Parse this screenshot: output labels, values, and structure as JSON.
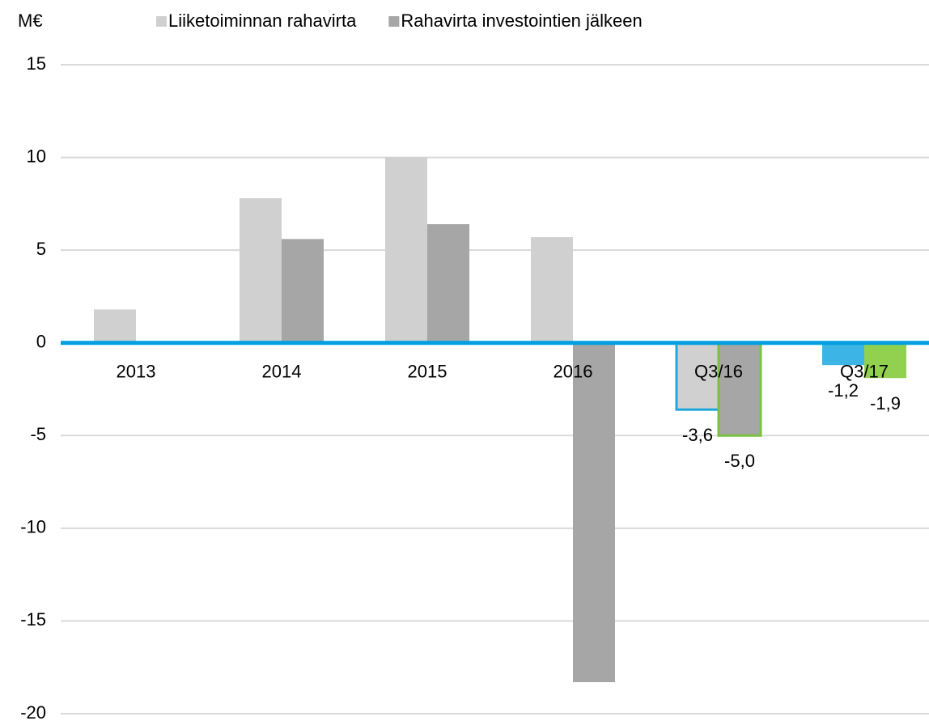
{
  "chart_data": {
    "type": "bar",
    "y_axis_label": "M€",
    "categories": [
      "2013",
      "2014",
      "2015",
      "2016",
      "Q3/16",
      "Q3/17"
    ],
    "series": [
      {
        "name": "Liiketoiminnan rahavirta",
        "color": "#d0d0d0",
        "values": [
          1.8,
          7.8,
          10.0,
          5.7,
          -3.6,
          -1.2
        ],
        "value_labels": [
          null,
          null,
          null,
          null,
          "-3,6",
          "-1,2"
        ],
        "point_fills": [
          null,
          null,
          null,
          null,
          null,
          "#3db4e6"
        ],
        "point_strokes": [
          null,
          null,
          null,
          null,
          "#1fa7e0",
          null
        ]
      },
      {
        "name": "Rahavirta investointien jälkeen",
        "color": "#a6a6a6",
        "values": [
          null,
          5.6,
          6.4,
          -18.3,
          -5.0,
          -1.9
        ],
        "value_labels": [
          null,
          null,
          null,
          null,
          "-5,0",
          "-1,9"
        ],
        "point_fills": [
          null,
          null,
          null,
          null,
          null,
          "#92d050"
        ],
        "point_strokes": [
          null,
          null,
          null,
          null,
          "#7ac143",
          null
        ]
      }
    ],
    "ylim": [
      -20,
      15
    ],
    "yticks": [
      -20,
      -15,
      -10,
      -5,
      0,
      5,
      10,
      15
    ],
    "grid": true,
    "grid_color": "#d9d9d9",
    "zero_line_color": "#00a0e0",
    "legend": "top"
  }
}
